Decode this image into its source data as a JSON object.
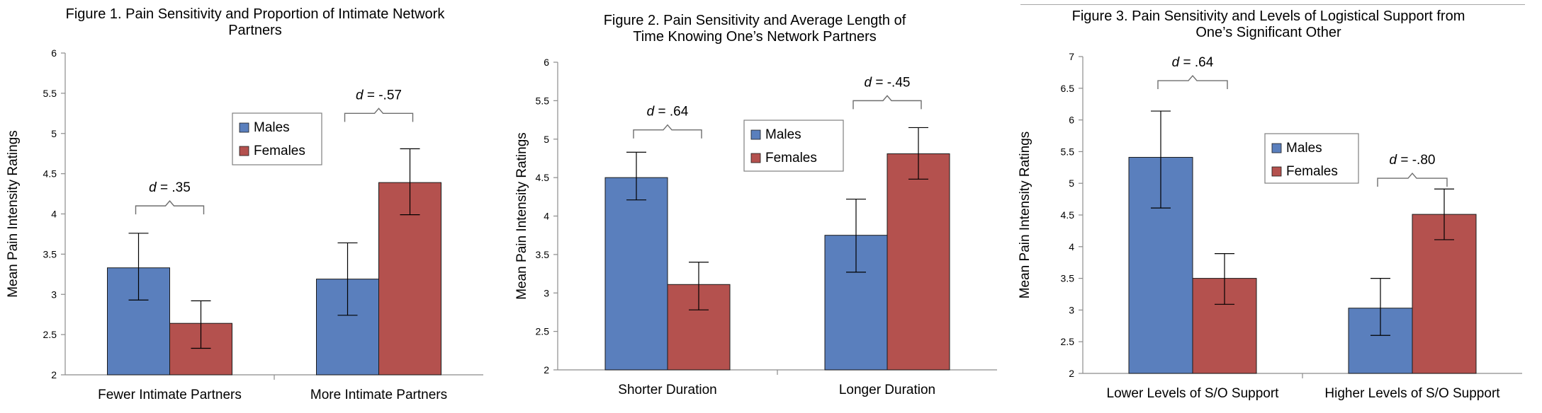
{
  "colors": {
    "males": "#5a7fbd",
    "females": "#b4514e",
    "axis": "#8c8c8c",
    "bar_edge": "#1a1a1a"
  },
  "chart_data": [
    {
      "type": "bar",
      "title_lines": [
        "Figure 1. Pain Sensitivity and Proportion of Intimate Network",
        "Partners"
      ],
      "ylabel": "Mean Pain Intensity Ratings",
      "ylim": [
        2,
        6
      ],
      "yticks": [
        "2",
        "2.5",
        "3",
        "3.5",
        "4",
        "4.5",
        "5",
        "5.5",
        "6"
      ],
      "categories": [
        "Fewer Intimate Partners",
        "More Intimate Partners"
      ],
      "series": [
        {
          "name": "Males",
          "values": [
            3.33,
            3.19
          ],
          "error_low": [
            2.93,
            2.74
          ],
          "error_high": [
            3.76,
            3.64
          ]
        },
        {
          "name": "Females",
          "values": [
            2.64,
            4.39
          ],
          "error_low": [
            2.33,
            3.99
          ],
          "error_high": [
            2.92,
            4.81
          ]
        }
      ],
      "annotations": [
        {
          "prefix": "d",
          "value": " = .35",
          "category": 0,
          "y": 4.1
        },
        {
          "prefix": "d",
          "value": " = -.57",
          "category": 1,
          "y": 5.25
        }
      ],
      "legend": "upper-center"
    },
    {
      "type": "bar",
      "title_lines": [
        "Figure 2. Pain Sensitivity and Average Length of",
        "Time Knowing One’s Network Partners"
      ],
      "ylabel": "Mean Pain Intensity Ratings",
      "ylim": [
        2,
        6
      ],
      "yticks": [
        "2",
        "2.5",
        "3",
        "3.5",
        "4",
        "4.5",
        "5",
        "5.5",
        "6"
      ],
      "categories": [
        "Shorter Duration",
        "Longer Duration"
      ],
      "series": [
        {
          "name": "Males",
          "values": [
            4.5,
            3.75
          ],
          "error_low": [
            4.21,
            3.27
          ],
          "error_high": [
            4.83,
            4.22
          ]
        },
        {
          "name": "Females",
          "values": [
            3.11,
            4.81
          ],
          "error_low": [
            2.78,
            4.48
          ],
          "error_high": [
            3.4,
            5.15
          ]
        }
      ],
      "annotations": [
        {
          "prefix": "d",
          "value": " = .64",
          "category": 0,
          "y": 5.12
        },
        {
          "prefix": "d",
          "value": " = -.45",
          "category": 1,
          "y": 5.5
        }
      ],
      "legend": "upper-center"
    },
    {
      "type": "bar",
      "title_lines": [
        "Figure 3. Pain Sensitivity and Levels of Logistical Support from",
        "One’s Significant Other"
      ],
      "ylabel": "Mean Pain Intensity Ratings",
      "ylim": [
        2,
        7
      ],
      "yticks": [
        "2",
        "2.5",
        "3",
        "3.5",
        "4",
        "4.5",
        "5",
        "5.5",
        "6",
        "6.5",
        "7"
      ],
      "categories": [
        "Lower Levels of S/O Support",
        "Higher Levels of S/O Support"
      ],
      "series": [
        {
          "name": "Males",
          "values": [
            5.41,
            3.03
          ],
          "error_low": [
            4.61,
            2.6
          ],
          "error_high": [
            6.14,
            3.5
          ]
        },
        {
          "name": "Females",
          "values": [
            3.5,
            4.51
          ],
          "error_low": [
            3.09,
            4.11
          ],
          "error_high": [
            3.89,
            4.91
          ]
        }
      ],
      "annotations": [
        {
          "prefix": "d",
          "value": " = .64",
          "category": 0,
          "y": 6.62
        },
        {
          "prefix": "d",
          "value": " = -.80",
          "category": 1,
          "y": 5.08
        }
      ],
      "legend": "center"
    }
  ]
}
